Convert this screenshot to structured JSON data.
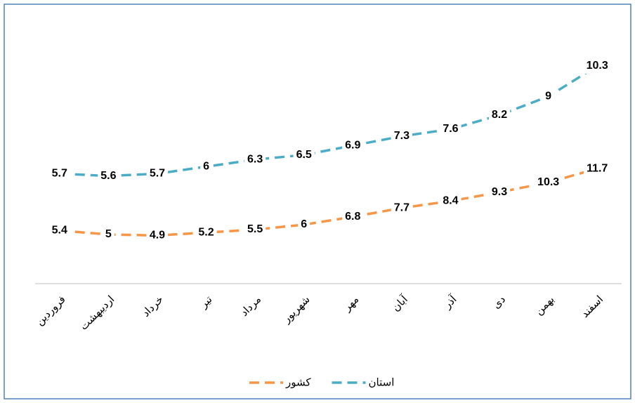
{
  "chart_data": {
    "type": "line",
    "categories": [
      "فروردین",
      "اردیبهشت",
      "خرداد",
      "تیر",
      "مرداد",
      "شهریور",
      "مهر",
      "آبان",
      "آذر",
      "دی",
      "بهمن",
      "اسفند"
    ],
    "series": [
      {
        "name": "کشور",
        "color": "#f79646",
        "values": [
          5.4,
          5,
          4.9,
          5.2,
          5.5,
          6,
          6.8,
          7.7,
          8.4,
          9.3,
          10.3,
          11.7
        ]
      },
      {
        "name": "استان",
        "color": "#4bacc6",
        "axis": "y2",
        "values": [
          5.7,
          5.6,
          5.7,
          6,
          6.3,
          6.5,
          6.9,
          7.3,
          7.6,
          8.2,
          9,
          10.3
        ]
      }
    ],
    "ylim": [
      0,
      25
    ],
    "y2lim": [
      1,
      11.5
    ],
    "dashed": true
  }
}
